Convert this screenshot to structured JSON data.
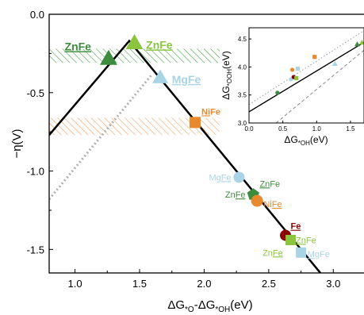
{
  "chart_data": {
    "type": "scatter",
    "xlabel_main": "ΔG",
    "xlabel_sub1": "*O",
    "xlabel_mid": "-ΔG",
    "xlabel_sub2": "*OH",
    "xlabel_unit": "(eV)",
    "ylabel": "−η(V)",
    "xlim": [
      0.8,
      3.25
    ],
    "ylim": [
      -1.65,
      0.0
    ],
    "xticks": [
      1.0,
      1.5,
      2.0,
      2.5,
      3.0
    ],
    "xtick_labels": [
      "1.0",
      "1.5",
      "2.0",
      "2.5",
      "3.0"
    ],
    "yticks": [
      0.0,
      -0.5,
      -1.0,
      -1.5
    ],
    "ytick_labels": [
      "0.0",
      "-0.5",
      "-1.0",
      "-1.5"
    ],
    "volcano_line": [
      {
        "x": 0.8,
        "y": -0.77
      },
      {
        "x": 1.42,
        "y": -0.17
      },
      {
        "x": 3.25,
        "y": -2.0
      }
    ],
    "dotted_line": [
      {
        "x": 0.8,
        "y": -1.18
      },
      {
        "x": 1.6,
        "y": -0.38
      }
    ],
    "bands": [
      {
        "ymin": -0.31,
        "ymax": -0.22,
        "color": "#46a046"
      },
      {
        "ymin": -0.77,
        "ymax": -0.66,
        "color": "#f0a060"
      }
    ],
    "points": [
      {
        "x": 1.26,
        "y": -0.29,
        "marker": "triangle",
        "color": "#3d8b3d",
        "size": 11
      },
      {
        "x": 1.46,
        "y": -0.19,
        "marker": "triangle",
        "color": "#8bc43f",
        "size": 11
      },
      {
        "x": 1.66,
        "y": -0.41,
        "marker": "triangle",
        "color": "#a8d4e6",
        "size": 10
      },
      {
        "x": 1.93,
        "y": -0.69,
        "marker": "square",
        "color": "#e8892e",
        "size": 7
      },
      {
        "x": 2.27,
        "y": -1.04,
        "marker": "circle",
        "color": "#a8d4e6",
        "size": 7
      },
      {
        "x": 2.38,
        "y": -1.15,
        "marker": "pentagon",
        "color": "#3d8b3d",
        "size": 8
      },
      {
        "x": 2.41,
        "y": -1.19,
        "marker": "circle",
        "color": "#e8892e",
        "size": 7.5
      },
      {
        "x": 2.63,
        "y": -1.41,
        "marker": "circle",
        "color": "#8b0000",
        "size": 7
      },
      {
        "x": 2.67,
        "y": -1.44,
        "marker": "square",
        "color": "#8bc43f",
        "size": 6.5
      },
      {
        "x": 2.75,
        "y": -1.52,
        "marker": "square",
        "color": "#a8d4e6",
        "size": 6.5
      }
    ],
    "labels": [
      {
        "parts": [
          {
            "text": "ZnFe",
            "u": true
          }
        ],
        "x": 0.92,
        "y": -0.23,
        "color": "#3d8b3d",
        "bold": true,
        "fs": 14,
        "anchor": "start"
      },
      {
        "parts": [
          {
            "text": "ZnFe",
            "u": true
          }
        ],
        "x": 1.55,
        "y": -0.22,
        "color": "#8bc43f",
        "bold": true,
        "fs": 14,
        "anchor": "start"
      },
      {
        "parts": [
          {
            "text": "MgFe",
            "u": true
          }
        ],
        "x": 1.75,
        "y": -0.44,
        "color": "#a8d4e6",
        "bold": true,
        "fs": 14,
        "anchor": "start"
      },
      {
        "parts": [
          {
            "text": "Ni",
            "u": true
          },
          {
            "text": "Fe",
            "u": false
          }
        ],
        "x": 1.98,
        "y": -0.64,
        "color": "#e8892e",
        "bold": true,
        "fs": 11,
        "anchor": "start"
      },
      {
        "parts": [
          {
            "text": "Mg",
            "u": false
          },
          {
            "text": "Fe",
            "u": true
          }
        ],
        "x": 2.21,
        "y": -1.06,
        "color": "#a8d4e6",
        "bold": false,
        "fs": 11,
        "anchor": "end"
      },
      {
        "parts": [
          {
            "text": "Zn",
            "u": true
          },
          {
            "text": "Fe",
            "u": false
          }
        ],
        "x": 2.43,
        "y": -1.1,
        "color": "#3d8b3d",
        "bold": false,
        "fs": 11,
        "anchor": "start"
      },
      {
        "parts": [
          {
            "text": "Zn",
            "u": false
          },
          {
            "text": "Fe",
            "u": true
          }
        ],
        "x": 2.32,
        "y": -1.17,
        "color": "#3d8b3d",
        "bold": false,
        "fs": 11,
        "anchor": "end"
      },
      {
        "parts": [
          {
            "text": "Ni",
            "u": false
          },
          {
            "text": "Fe",
            "u": true
          }
        ],
        "x": 2.46,
        "y": -1.23,
        "color": "#e8892e",
        "bold": false,
        "fs": 11,
        "anchor": "start"
      },
      {
        "parts": [
          {
            "text": "Fe",
            "u": true
          }
        ],
        "x": 2.67,
        "y": -1.37,
        "color": "#8b0000",
        "bold": true,
        "fs": 11,
        "anchor": "start"
      },
      {
        "parts": [
          {
            "text": "Zn",
            "u": true
          },
          {
            "text": "Fe",
            "u": false
          }
        ],
        "x": 2.71,
        "y": -1.46,
        "color": "#8bc43f",
        "bold": false,
        "fs": 11,
        "anchor": "start"
      },
      {
        "parts": [
          {
            "text": "Zn",
            "u": false
          },
          {
            "text": "Fe",
            "u": true
          }
        ],
        "x": 2.61,
        "y": -1.54,
        "color": "#8bc43f",
        "bold": false,
        "fs": 11,
        "anchor": "end"
      },
      {
        "parts": [
          {
            "text": "Mg",
            "u": true
          },
          {
            "text": "Fe",
            "u": false
          }
        ],
        "x": 2.8,
        "y": -1.55,
        "color": "#a8d4e6",
        "bold": false,
        "fs": 11,
        "anchor": "start"
      }
    ],
    "inset": {
      "xlabel_main": "ΔG",
      "xlabel_sub": "*OH",
      "xlabel_unit": "(eV)",
      "ylabel_main": "ΔG",
      "ylabel_sub": "*OOH",
      "ylabel_unit": "(eV)",
      "xlim": [
        0.0,
        1.7
      ],
      "ylim": [
        3.0,
        4.7
      ],
      "xticks": [
        0.0,
        0.5,
        1.0,
        1.5
      ],
      "xtick_labels": [
        "0.0",
        "0.5",
        "1.0",
        "1.5"
      ],
      "yticks": [
        3.0,
        3.5,
        4.0,
        4.5
      ],
      "ytick_labels": [
        "3.0",
        "3.5",
        "4.0",
        "4.5"
      ],
      "fit_line": [
        {
          "x": 0.0,
          "y": 3.2
        },
        {
          "x": 1.7,
          "y": 4.44
        }
      ],
      "dashed_line": [
        {
          "x": 0.4,
          "y": 3.0
        },
        {
          "x": 1.7,
          "y": 4.3
        }
      ],
      "dotted_line": [
        {
          "x": 0.0,
          "y": 3.33
        },
        {
          "x": 1.7,
          "y": 4.65
        }
      ],
      "points": [
        {
          "x": 0.42,
          "y": 3.54,
          "marker": "circle",
          "color": "#3d8b3d"
        },
        {
          "x": 0.62,
          "y": 3.78,
          "marker": "circle",
          "color": "#a8d4e6"
        },
        {
          "x": 0.66,
          "y": 3.82,
          "marker": "circle",
          "color": "#8b0000"
        },
        {
          "x": 0.64,
          "y": 3.95,
          "marker": "circle",
          "color": "#e8892e"
        },
        {
          "x": 0.7,
          "y": 3.8,
          "marker": "square",
          "color": "#8bc43f"
        },
        {
          "x": 0.72,
          "y": 3.97,
          "marker": "square",
          "color": "#a8d4e6"
        },
        {
          "x": 0.97,
          "y": 4.18,
          "marker": "square",
          "color": "#e8892e"
        },
        {
          "x": 1.27,
          "y": 4.05,
          "marker": "triangle",
          "color": "#a8d4e6"
        },
        {
          "x": 1.6,
          "y": 4.4,
          "marker": "triangle",
          "color": "#3d8b3d"
        },
        {
          "x": 1.67,
          "y": 4.43,
          "marker": "triangle",
          "color": "#8bc43f"
        }
      ]
    }
  }
}
